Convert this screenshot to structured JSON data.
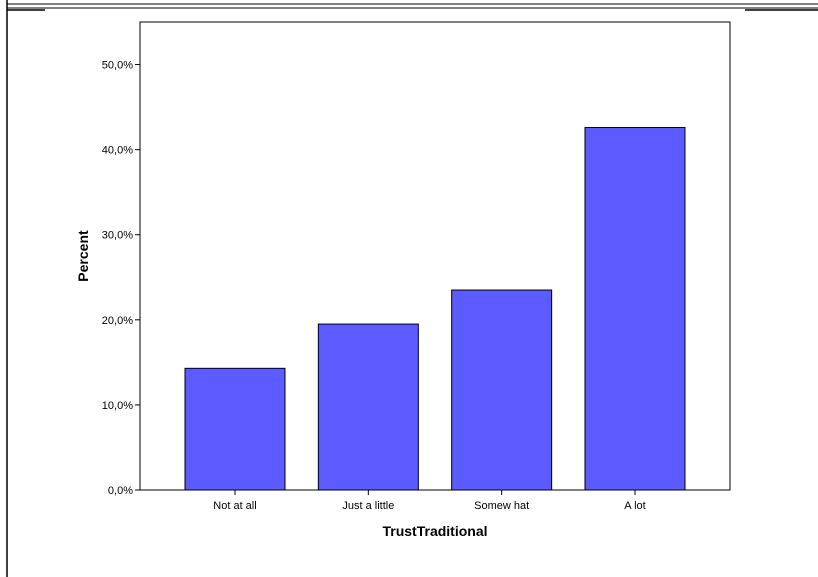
{
  "chart_data": {
    "type": "bar",
    "categories": [
      "Not at all",
      "Just a little",
      "Somew hat",
      "A lot"
    ],
    "values": [
      14.3,
      19.5,
      23.5,
      42.6
    ],
    "xlabel": "TrustTraditional",
    "ylabel": "Percent",
    "ylim": [
      0,
      55
    ],
    "yticks": [
      "0,0%",
      "10,0%",
      "20,0%",
      "30,0%",
      "40,0%",
      "50,0%"
    ],
    "ytick_values": [
      0,
      10,
      20,
      30,
      40,
      50
    ],
    "bar_color": "#5b5bff",
    "bar_edge_color": "#000000",
    "grid": false,
    "legend": "none"
  }
}
